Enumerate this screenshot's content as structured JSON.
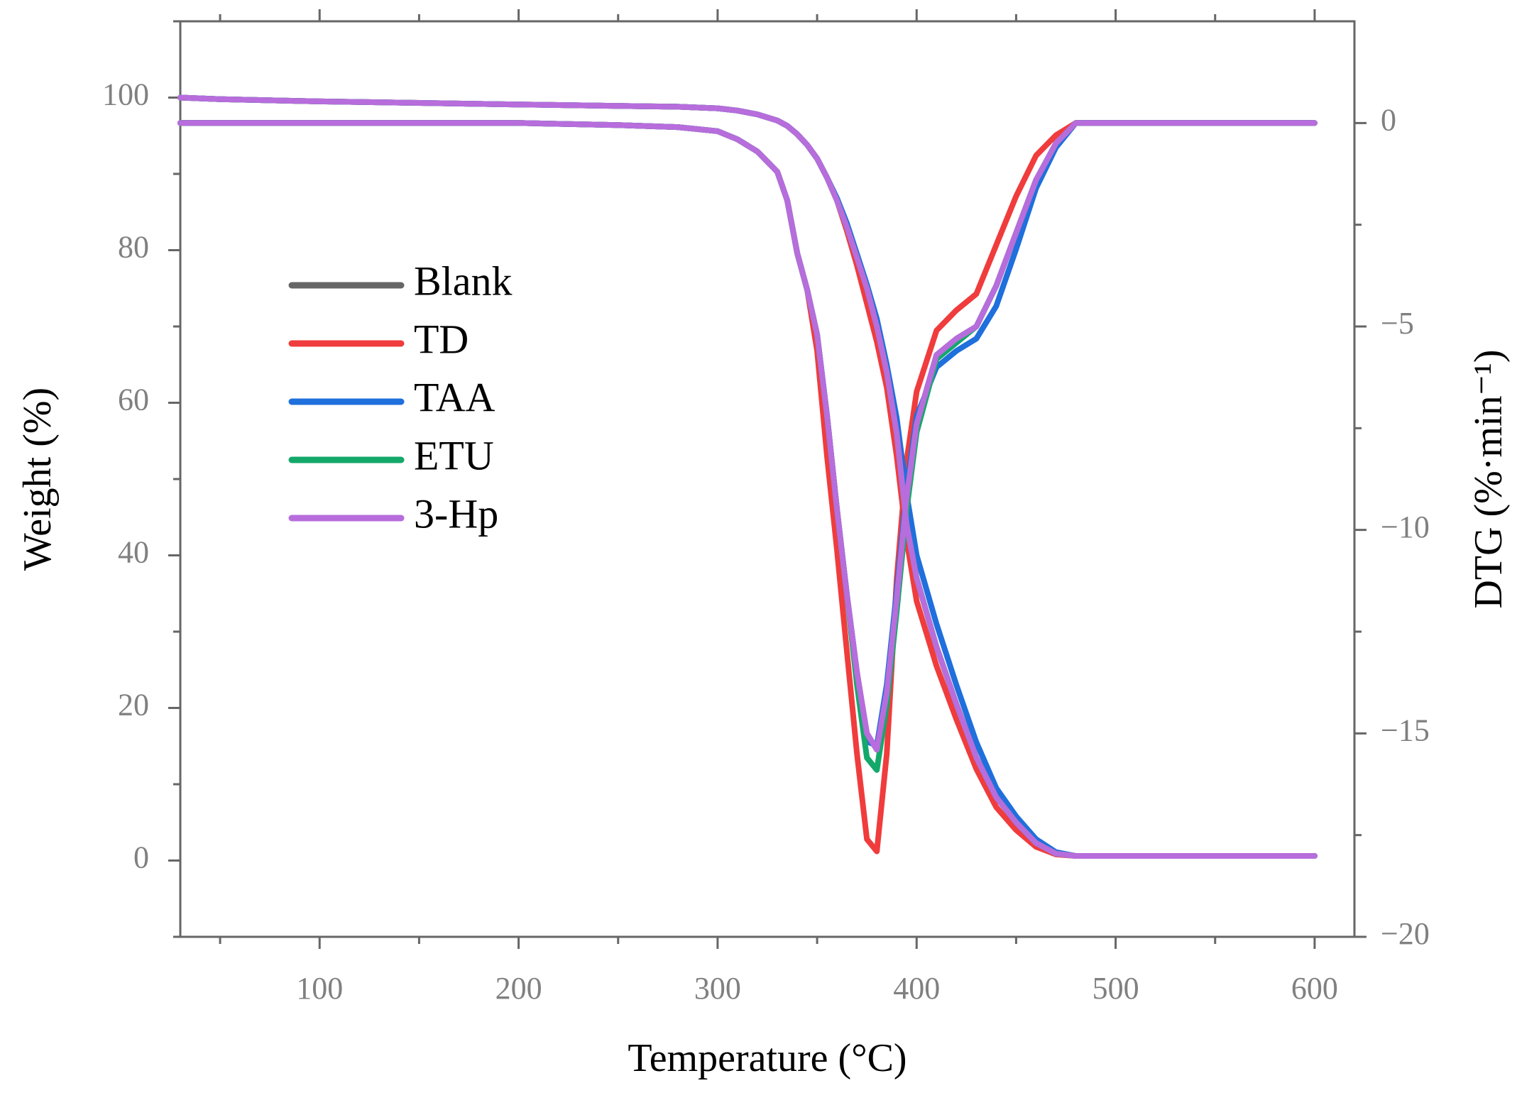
{
  "chart_data": {
    "type": "line",
    "xlabel": "Temperature (°C)",
    "ylabel": "Weight (%)",
    "y2label": "DTG (%·min⁻¹)",
    "x": [
      30,
      50,
      100,
      150,
      200,
      250,
      280,
      300,
      310,
      320,
      330,
      335,
      340,
      345,
      350,
      355,
      360,
      365,
      370,
      375,
      380,
      385,
      390,
      395,
      400,
      410,
      420,
      430,
      440,
      450,
      460,
      470,
      480,
      500,
      550,
      600
    ],
    "xlim": [
      30,
      620
    ],
    "xticks": [
      100,
      200,
      300,
      400,
      500,
      600
    ],
    "xminorticks": [
      50,
      150,
      250,
      350,
      450,
      550
    ],
    "ylim": [
      -10,
      110
    ],
    "yticks": [
      0,
      20,
      40,
      60,
      80,
      100
    ],
    "yminorticks": [
      -10,
      10,
      30,
      50,
      70,
      90,
      110
    ],
    "y2lim": [
      -20,
      2.5
    ],
    "y2ticks": [
      {
        "value": 0,
        "label": "0"
      },
      {
        "value": -5,
        "label": "−5"
      },
      {
        "value": -10,
        "label": "−10"
      },
      {
        "value": -15,
        "label": "−15"
      },
      {
        "value": -20,
        "label": "−20"
      }
    ],
    "y2minorticks": [
      -2.5,
      -7.5,
      -12.5,
      -17.5
    ],
    "legend": "upper left",
    "series": [
      {
        "name": "Blank",
        "color": "#666666",
        "values": [
          100,
          99.8,
          99.5,
          99.3,
          99.1,
          98.9,
          98.8,
          98.6,
          98.3,
          97.8,
          97,
          96.3,
          95.2,
          93.8,
          92,
          89.5,
          86.5,
          83,
          79,
          75,
          70,
          64,
          56,
          44,
          37,
          28,
          20.5,
          13.5,
          8.3,
          5,
          2.3,
          0.9,
          0.6,
          0.6,
          0.6,
          0.6
        ],
        "y2_values": [
          0,
          0,
          0,
          0,
          0,
          -0.05,
          -0.1,
          -0.2,
          -0.4,
          -0.7,
          -1.2,
          -1.9,
          -3.2,
          -4.1,
          -5.2,
          -7.2,
          -9.5,
          -11.6,
          -13.5,
          -15,
          -15.4,
          -14,
          -11.7,
          -9.2,
          -7.4,
          -5.7,
          -5.3,
          -5,
          -4,
          -2.7,
          -1.4,
          -0.5,
          0,
          0,
          0,
          0
        ]
      },
      {
        "name": "TD",
        "color": "#f03c3c",
        "values": [
          100,
          99.8,
          99.5,
          99.3,
          99.1,
          98.9,
          98.8,
          98.6,
          98.3,
          97.8,
          97,
          96.3,
          95.2,
          93.8,
          92,
          89.5,
          86.5,
          82.5,
          78,
          73,
          68,
          62,
          53,
          42,
          34,
          25.5,
          18.5,
          12,
          7,
          4,
          1.8,
          0.8,
          0.6,
          0.6,
          0.6,
          0.6
        ],
        "y2_values": [
          0,
          0,
          0,
          0,
          0,
          -0.05,
          -0.1,
          -0.2,
          -0.4,
          -0.7,
          -1.2,
          -1.9,
          -3.2,
          -4.1,
          -5.6,
          -8.2,
          -10.5,
          -13,
          -15.5,
          -17.6,
          -17.9,
          -15.5,
          -11.2,
          -8.3,
          -6.6,
          -5.1,
          -4.6,
          -4.2,
          -3,
          -1.8,
          -0.8,
          -0.3,
          0,
          0,
          0,
          0
        ]
      },
      {
        "name": "TAA",
        "color": "#1f6fdc",
        "values": [
          100,
          99.8,
          99.5,
          99.3,
          99.1,
          98.9,
          98.8,
          98.6,
          98.3,
          97.8,
          97,
          96.3,
          95.2,
          93.8,
          92,
          89.5,
          86.8,
          83.5,
          79.5,
          75.5,
          71,
          65,
          58,
          48,
          40,
          31,
          23,
          15.5,
          9.5,
          5.8,
          2.8,
          1.1,
          0.6,
          0.6,
          0.6,
          0.6
        ],
        "y2_values": [
          0,
          0,
          0,
          0,
          0,
          -0.05,
          -0.1,
          -0.2,
          -0.4,
          -0.7,
          -1.2,
          -1.9,
          -3.2,
          -4.1,
          -5.2,
          -7.2,
          -9.5,
          -11.6,
          -13.5,
          -15.2,
          -15.3,
          -13.8,
          -11.5,
          -9,
          -7.2,
          -6,
          -5.6,
          -5.3,
          -4.5,
          -3.1,
          -1.6,
          -0.6,
          0,
          0,
          0,
          0
        ]
      },
      {
        "name": "ETU",
        "color": "#14a86a",
        "values": [
          100,
          99.8,
          99.5,
          99.3,
          99.1,
          98.9,
          98.8,
          98.6,
          98.3,
          97.8,
          97,
          96.3,
          95.2,
          93.8,
          92,
          89.5,
          86.5,
          83,
          79,
          75,
          70,
          64,
          56,
          44,
          37,
          28,
          20.5,
          13.5,
          8.3,
          5,
          2.3,
          0.9,
          0.6,
          0.6,
          0.6,
          0.6
        ],
        "y2_values": [
          0,
          0,
          0,
          0,
          0,
          -0.05,
          -0.1,
          -0.2,
          -0.4,
          -0.7,
          -1.2,
          -1.9,
          -3.2,
          -4.1,
          -5.2,
          -7.2,
          -9.5,
          -11.6,
          -13.8,
          -15.6,
          -15.9,
          -14.3,
          -12,
          -9.5,
          -7.6,
          -5.8,
          -5.4,
          -5,
          -4,
          -2.7,
          -1.4,
          -0.5,
          0,
          0,
          0,
          0
        ]
      },
      {
        "name": "3-Hp",
        "color": "#b76ddc",
        "values": [
          100,
          99.8,
          99.5,
          99.3,
          99.1,
          98.9,
          98.8,
          98.6,
          98.3,
          97.8,
          97,
          96.3,
          95.2,
          93.8,
          92,
          89.5,
          86.5,
          83,
          79,
          75,
          70,
          64,
          56,
          44,
          37,
          28,
          20.5,
          13.5,
          8.3,
          5,
          2.3,
          0.9,
          0.6,
          0.6,
          0.6,
          0.6
        ],
        "y2_values": [
          0,
          0,
          0,
          0,
          0,
          -0.05,
          -0.1,
          -0.2,
          -0.4,
          -0.7,
          -1.2,
          -1.9,
          -3.2,
          -4.1,
          -5.2,
          -7.2,
          -9.5,
          -11.6,
          -13.5,
          -15,
          -15.4,
          -14,
          -11.7,
          -9.2,
          -7.4,
          -5.7,
          -5.3,
          -5,
          -4,
          -2.7,
          -1.4,
          -0.5,
          0,
          0,
          0,
          0
        ]
      }
    ]
  }
}
